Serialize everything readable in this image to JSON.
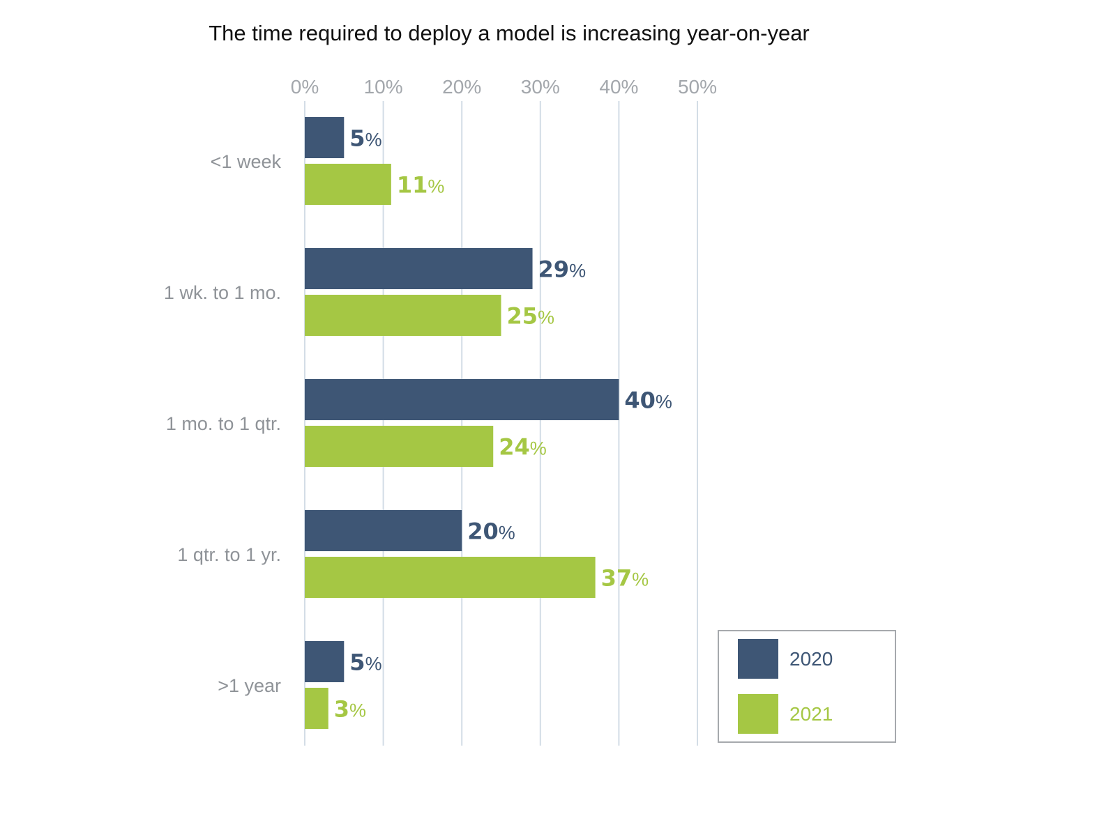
{
  "chart_data": {
    "type": "bar",
    "orientation": "horizontal",
    "title": "The time required to deploy a model is increasing year-on-year",
    "categories": [
      "<1 week",
      "1 wk. to 1 mo.",
      "1 mo. to 1 qtr.",
      "1 qtr. to 1 yr.",
      ">1 year"
    ],
    "series": [
      {
        "name": "2020",
        "values": [
          5,
          29,
          40,
          20,
          5
        ],
        "color": "#3e5675"
      },
      {
        "name": "2021",
        "values": [
          11,
          25,
          24,
          37,
          3
        ],
        "color": "#a5c744"
      }
    ],
    "value_suffix": "%",
    "xlim": [
      0,
      50
    ],
    "x_ticks": [
      "0%",
      "10%",
      "20%",
      "30%",
      "40%",
      "50%"
    ],
    "x_axis_position": "top",
    "grid": true,
    "legend_position": "bottom-right"
  }
}
